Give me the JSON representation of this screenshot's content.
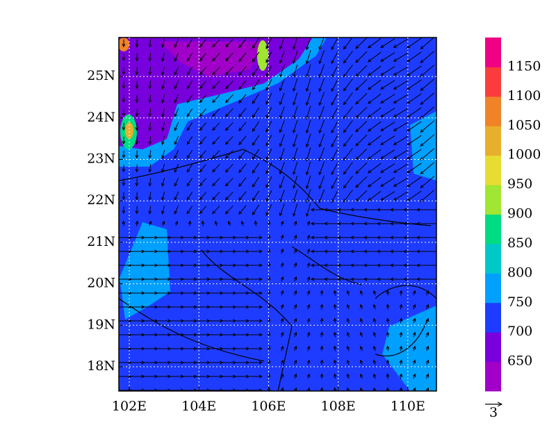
{
  "map": {
    "lat_ticks": [
      {
        "value": 18,
        "label": "18N"
      },
      {
        "value": 19,
        "label": "19N"
      },
      {
        "value": 20,
        "label": "20N"
      },
      {
        "value": 21,
        "label": "21N"
      },
      {
        "value": 22,
        "label": "22N"
      },
      {
        "value": 23,
        "label": "23N"
      },
      {
        "value": 24,
        "label": "24N"
      },
      {
        "value": 25,
        "label": "25N"
      }
    ],
    "lon_ticks": [
      {
        "value": 102,
        "label": "102E"
      },
      {
        "value": 104,
        "label": "104E"
      },
      {
        "value": 106,
        "label": "106E"
      },
      {
        "value": 108,
        "label": "108E"
      },
      {
        "value": 110,
        "label": "110E"
      }
    ]
  },
  "colorbar": {
    "labels": [
      "650",
      "700",
      "750",
      "800",
      "850",
      "900",
      "950",
      "1000",
      "1050",
      "1100",
      "1150"
    ],
    "colors": [
      "#a000c8",
      "#7800dc",
      "#1e3cff",
      "#00a0ff",
      "#00c8c8",
      "#00dc82",
      "#a0e632",
      "#e6dc32",
      "#e6af2d",
      "#f08228",
      "#fa3c3c",
      "#f00082"
    ]
  },
  "reference_vector": {
    "label": "3"
  }
}
